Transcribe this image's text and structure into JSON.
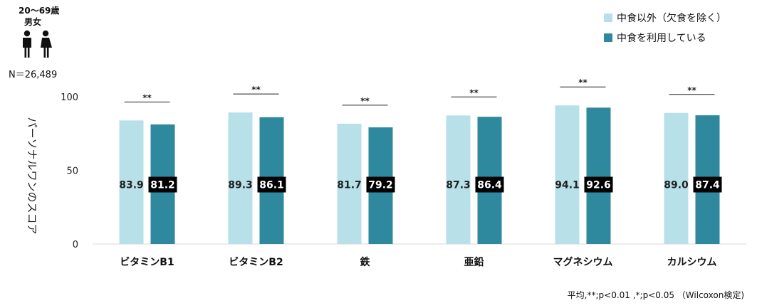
{
  "demographics": {
    "age": "20～69歳",
    "sex": "男女",
    "icons": [
      "male-person-icon",
      "female-person-icon"
    ],
    "n": "N＝26,489"
  },
  "legend": [
    {
      "label": "中食以外（欠食を除く）",
      "color": "#b8e0e9"
    },
    {
      "label": "中食を利用している",
      "color": "#2e889e"
    }
  ],
  "footnote": "平均,**;p<0.01 ,*;p<0.05 （Wilcoxon検定)",
  "chart_data": {
    "type": "bar",
    "ylabel": "パーソナルワンのスコア",
    "ylim": [
      0,
      100
    ],
    "yticks": [
      "0",
      "50",
      "100"
    ],
    "categories": [
      "ビタミンB1",
      "ビタミンB2",
      "鉄",
      "亜鉛",
      "マグネシウム",
      "カルシウム"
    ],
    "series": [
      {
        "name": "中食以外（欠食を除く）",
        "color": "#b8e0e9",
        "values": [
          83.9,
          89.3,
          81.7,
          87.3,
          94.1,
          89.0
        ]
      },
      {
        "name": "中食を利用している",
        "color": "#2e889e",
        "values": [
          81.2,
          86.1,
          79.2,
          86.4,
          92.6,
          87.4
        ]
      }
    ],
    "significance": [
      "**",
      "**",
      "**",
      "**",
      "**",
      "**"
    ],
    "value_labels": {
      "series_0": [
        "83.9",
        "89.3",
        "81.7",
        "87.3",
        "94.1",
        "89.0"
      ],
      "series_1": [
        "81.2",
        "86.1",
        "79.2",
        "86.4",
        "92.6",
        "87.4"
      ]
    },
    "grid": false,
    "legend_position": "top-right"
  }
}
